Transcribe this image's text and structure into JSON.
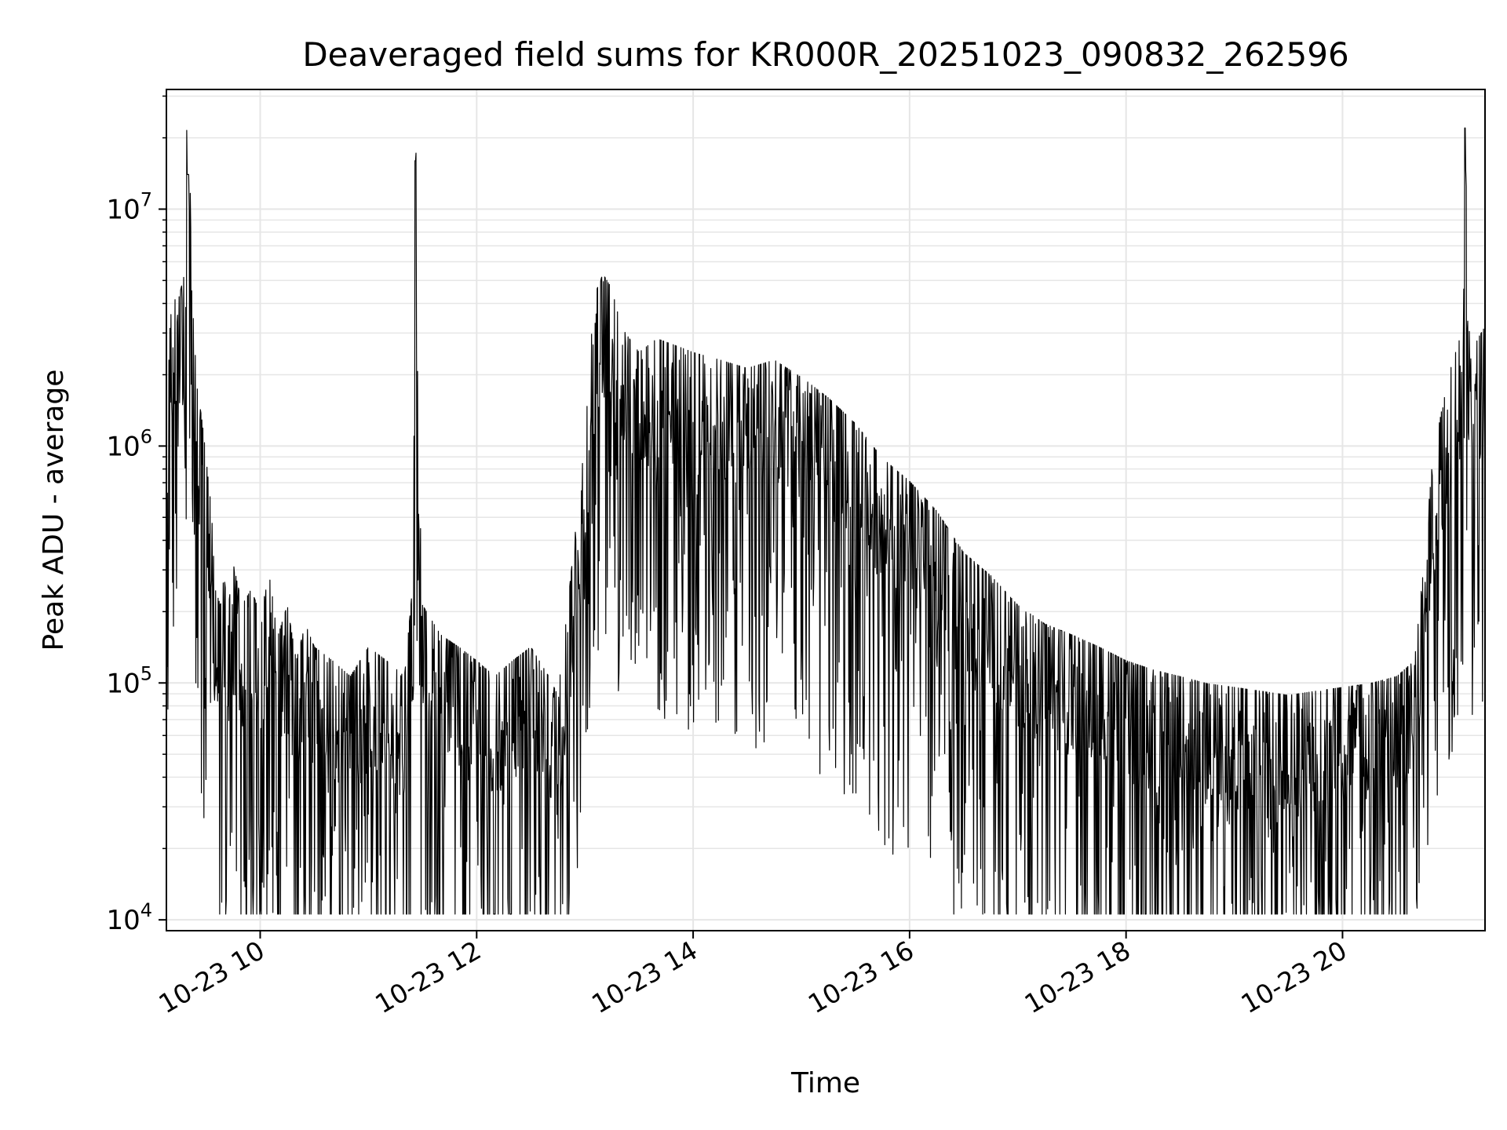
{
  "chart_data": {
    "type": "line",
    "title": "Deaveraged field sums for KR000R_20251023_090832_262596",
    "xlabel": "Time",
    "ylabel": "Peak ADU - average",
    "yscale": "log",
    "ylim": [
      9000,
      32000000
    ],
    "xlim": [
      "2025-10-23 09:08",
      "2025-10-23 21:19"
    ],
    "grid": true,
    "legend": "none",
    "line_color": "#000000",
    "grid_color": "#e6e6e6",
    "x_ticks": [
      {
        "value": "2025-10-23 10:00",
        "label": "10-23 10"
      },
      {
        "value": "2025-10-23 12:00",
        "label": "10-23 12"
      },
      {
        "value": "2025-10-23 14:00",
        "label": "10-23 14"
      },
      {
        "value": "2025-10-23 16:00",
        "label": "10-23 16"
      },
      {
        "value": "2025-10-23 18:00",
        "label": "10-23 18"
      },
      {
        "value": "2025-10-23 20:00",
        "label": "10-23 20"
      }
    ],
    "y_ticks": [
      {
        "value": 10000,
        "base": "10",
        "exp": "4"
      },
      {
        "value": 100000,
        "base": "10",
        "exp": "5"
      },
      {
        "value": 1000000,
        "base": "10",
        "exp": "6"
      },
      {
        "value": 10000000,
        "base": "10",
        "exp": "7"
      }
    ],
    "series": [
      {
        "x": [
          "2025-10-23 09:08",
          "2025-10-23 09:10",
          "2025-10-23 09:12",
          "2025-10-23 09:15",
          "2025-10-23 09:18",
          "2025-10-23 09:20",
          "2025-10-23 09:22",
          "2025-10-23 09:25",
          "2025-10-23 09:28",
          "2025-10-23 09:30",
          "2025-10-23 09:33",
          "2025-10-23 09:35",
          "2025-10-23 09:38",
          "2025-10-23 09:40",
          "2025-10-23 09:42",
          "2025-10-23 09:45",
          "2025-10-23 09:50",
          "2025-10-23 09:55",
          "2025-10-23 10:00",
          "2025-10-23 10:05",
          "2025-10-23 10:10",
          "2025-10-23 10:15",
          "2025-10-23 10:20",
          "2025-10-23 10:25",
          "2025-10-23 10:30",
          "2025-10-23 10:40",
          "2025-10-23 10:50",
          "2025-10-23 11:00",
          "2025-10-23 11:10",
          "2025-10-23 11:20",
          "2025-10-23 11:25",
          "2025-10-23 11:26",
          "2025-10-23 11:27",
          "2025-10-23 11:30",
          "2025-10-23 11:40",
          "2025-10-23 11:50",
          "2025-10-23 12:00",
          "2025-10-23 12:10",
          "2025-10-23 12:20",
          "2025-10-23 12:30",
          "2025-10-23 12:40",
          "2025-10-23 12:45",
          "2025-10-23 12:50",
          "2025-10-23 13:00",
          "2025-10-23 13:05",
          "2025-10-23 13:10",
          "2025-10-23 13:15",
          "2025-10-23 13:20",
          "2025-10-23 13:30",
          "2025-10-23 13:40",
          "2025-10-23 13:50",
          "2025-10-23 14:00",
          "2025-10-23 14:15",
          "2025-10-23 14:30",
          "2025-10-23 14:45",
          "2025-10-23 15:00",
          "2025-10-23 15:15",
          "2025-10-23 15:30",
          "2025-10-23 15:45",
          "2025-10-23 16:00",
          "2025-10-23 16:15",
          "2025-10-23 16:30",
          "2025-10-23 16:45",
          "2025-10-23 17:00",
          "2025-10-23 17:15",
          "2025-10-23 17:30",
          "2025-10-23 17:45",
          "2025-10-23 18:00",
          "2025-10-23 18:15",
          "2025-10-23 18:30",
          "2025-10-23 18:45",
          "2025-10-23 19:00",
          "2025-10-23 19:15",
          "2025-10-23 19:30",
          "2025-10-23 19:45",
          "2025-10-23 20:00",
          "2025-10-23 20:15",
          "2025-10-23 20:30",
          "2025-10-23 20:40",
          "2025-10-23 20:45",
          "2025-10-23 20:50",
          "2025-10-23 20:55",
          "2025-10-23 21:00",
          "2025-10-23 21:05",
          "2025-10-23 21:07",
          "2025-10-23 21:08",
          "2025-10-23 21:09",
          "2025-10-23 21:12",
          "2025-10-23 21:15",
          "2025-10-23 21:19"
        ],
        "y": [
          300000,
          900000,
          1400000,
          1200000,
          1500000,
          14000000,
          1300000,
          500000,
          350000,
          250000,
          150000,
          70000,
          60000,
          80000,
          55000,
          90000,
          60000,
          70000,
          55000,
          80000,
          45000,
          60000,
          35000,
          50000,
          40000,
          35000,
          30000,
          40000,
          35000,
          30000,
          80000,
          16000000,
          700000,
          60000,
          45000,
          40000,
          35000,
          30000,
          35000,
          40000,
          30000,
          25000,
          55000,
          300000,
          1200000,
          1500000,
          1300000,
          900000,
          700000,
          800000,
          750000,
          700000,
          650000,
          600000,
          650000,
          550000,
          450000,
          350000,
          250000,
          200000,
          150000,
          100000,
          80000,
          60000,
          50000,
          45000,
          40000,
          35000,
          32000,
          30000,
          28000,
          27000,
          26000,
          25000,
          26000,
          27000,
          28000,
          30000,
          35000,
          90000,
          250000,
          400000,
          600000,
          800000,
          1100000,
          22000000,
          1000000,
          700000,
          800000,
          900000
        ]
      }
    ]
  }
}
